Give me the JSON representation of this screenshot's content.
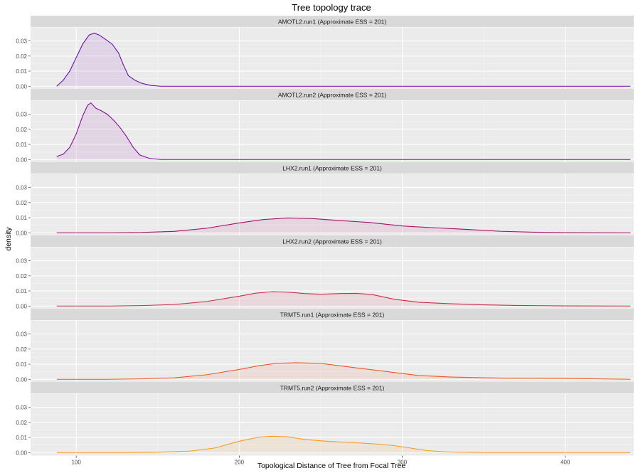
{
  "chart_data": {
    "type": "area",
    "title": "Tree topology trace",
    "xlabel": "Topological Distance of Tree from Focal Tree",
    "ylabel": "density",
    "xlim": [
      72,
      442
    ],
    "ylim": [
      -0.002,
      0.039
    ],
    "x_ticks": [
      100,
      200,
      300,
      400
    ],
    "y_ticks": [
      0.0,
      0.01,
      0.02,
      0.03
    ],
    "y_tick_labels": [
      "0.00",
      "0.01",
      "0.02",
      "0.03"
    ],
    "grid": true,
    "x_range": [
      88,
      440
    ],
    "panels": [
      {
        "name": "AMOTL2.run1 (Approximate ESS = 201)",
        "color": "#6a0dad",
        "points": [
          [
            88,
            0.0
          ],
          [
            92,
            0.004
          ],
          [
            96,
            0.01
          ],
          [
            100,
            0.019
          ],
          [
            104,
            0.028
          ],
          [
            108,
            0.034
          ],
          [
            111,
            0.0352
          ],
          [
            114,
            0.034
          ],
          [
            118,
            0.031
          ],
          [
            122,
            0.028
          ],
          [
            126,
            0.022
          ],
          [
            129,
            0.014
          ],
          [
            132,
            0.007
          ],
          [
            136,
            0.004
          ],
          [
            140,
            0.002
          ],
          [
            146,
            0.0005
          ],
          [
            152,
            0.0
          ],
          [
            200,
            0.0
          ],
          [
            300,
            0.0
          ],
          [
            440,
            0.0
          ]
        ]
      },
      {
        "name": "AMOTL2.run2 (Approximate ESS = 201)",
        "color": "#8a0ca0",
        "points": [
          [
            88,
            0.002
          ],
          [
            92,
            0.0035
          ],
          [
            96,
            0.008
          ],
          [
            100,
            0.017
          ],
          [
            104,
            0.029
          ],
          [
            107,
            0.036
          ],
          [
            109,
            0.0375
          ],
          [
            112,
            0.034
          ],
          [
            115,
            0.0325
          ],
          [
            119,
            0.03
          ],
          [
            123,
            0.026
          ],
          [
            127,
            0.021
          ],
          [
            131,
            0.015
          ],
          [
            135,
            0.008
          ],
          [
            139,
            0.003
          ],
          [
            145,
            0.0007
          ],
          [
            152,
            0.0
          ],
          [
            200,
            0.0
          ],
          [
            300,
            0.0
          ],
          [
            440,
            0.0
          ]
        ]
      },
      {
        "name": "LHX2.run1 (Approximate ESS = 201)",
        "color": "#a3106b",
        "points": [
          [
            88,
            0.0
          ],
          [
            120,
            0.0
          ],
          [
            140,
            0.0002
          ],
          [
            160,
            0.0009
          ],
          [
            180,
            0.003
          ],
          [
            200,
            0.0065
          ],
          [
            215,
            0.0088
          ],
          [
            230,
            0.0098
          ],
          [
            245,
            0.0094
          ],
          [
            260,
            0.0082
          ],
          [
            280,
            0.0068
          ],
          [
            300,
            0.0045
          ],
          [
            320,
            0.0033
          ],
          [
            340,
            0.0022
          ],
          [
            360,
            0.001
          ],
          [
            380,
            0.0004
          ],
          [
            400,
            0.0001
          ],
          [
            440,
            0.0
          ]
        ]
      },
      {
        "name": "LHX2.run2 (Approximate ESS = 201)",
        "color": "#cc2e4a",
        "points": [
          [
            88,
            0.0
          ],
          [
            120,
            0.0
          ],
          [
            140,
            0.0003
          ],
          [
            160,
            0.001
          ],
          [
            180,
            0.003
          ],
          [
            200,
            0.0065
          ],
          [
            210,
            0.0085
          ],
          [
            220,
            0.0095
          ],
          [
            230,
            0.0092
          ],
          [
            240,
            0.0083
          ],
          [
            250,
            0.0078
          ],
          [
            262,
            0.0083
          ],
          [
            272,
            0.0084
          ],
          [
            282,
            0.0075
          ],
          [
            295,
            0.0045
          ],
          [
            310,
            0.0025
          ],
          [
            330,
            0.0015
          ],
          [
            350,
            0.0008
          ],
          [
            370,
            0.0004
          ],
          [
            400,
            0.0001
          ],
          [
            440,
            0.0
          ]
        ]
      },
      {
        "name": "TRMT5.run1 (Approximate ESS = 201)",
        "color": "#ea5a28",
        "points": [
          [
            88,
            0.0
          ],
          [
            120,
            0.0
          ],
          [
            140,
            0.0003
          ],
          [
            160,
            0.001
          ],
          [
            180,
            0.003
          ],
          [
            200,
            0.0065
          ],
          [
            212,
            0.009
          ],
          [
            222,
            0.0105
          ],
          [
            235,
            0.011
          ],
          [
            250,
            0.0105
          ],
          [
            265,
            0.0085
          ],
          [
            280,
            0.0065
          ],
          [
            295,
            0.0045
          ],
          [
            310,
            0.0025
          ],
          [
            330,
            0.0015
          ],
          [
            360,
            0.0008
          ],
          [
            400,
            0.0006
          ],
          [
            420,
            0.0003
          ],
          [
            440,
            0.0
          ]
        ]
      },
      {
        "name": "TRMT5.run2 (Approximate ESS = 201)",
        "color": "#f49a24",
        "points": [
          [
            88,
            0.0
          ],
          [
            130,
            0.0
          ],
          [
            150,
            0.0002
          ],
          [
            170,
            0.001
          ],
          [
            185,
            0.003
          ],
          [
            200,
            0.0075
          ],
          [
            212,
            0.0102
          ],
          [
            220,
            0.0108
          ],
          [
            230,
            0.0104
          ],
          [
            240,
            0.0087
          ],
          [
            255,
            0.0074
          ],
          [
            270,
            0.0066
          ],
          [
            285,
            0.0056
          ],
          [
            295,
            0.0046
          ],
          [
            305,
            0.003
          ],
          [
            315,
            0.0013
          ],
          [
            330,
            0.0003
          ],
          [
            350,
            0.0
          ],
          [
            440,
            0.0
          ]
        ]
      }
    ]
  }
}
